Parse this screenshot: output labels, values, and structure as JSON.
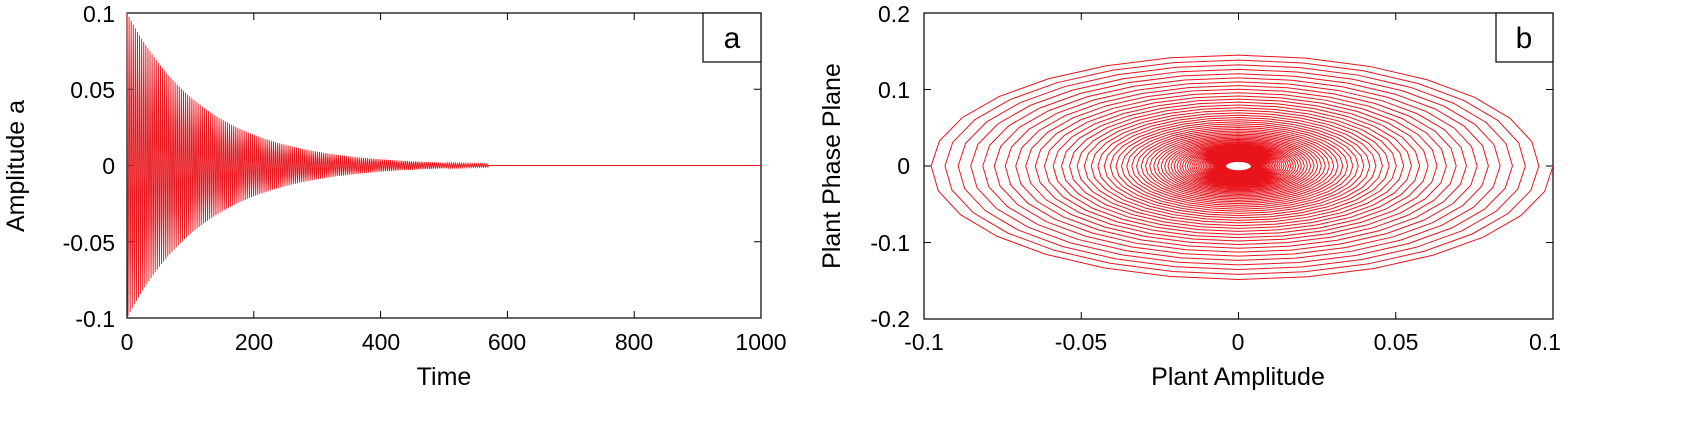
{
  "chart_data": [
    {
      "type": "line",
      "panel_label": "a",
      "title": "",
      "xlabel": "Time",
      "ylabel": "Amplitude a",
      "xlim": [
        0,
        1000
      ],
      "ylim": [
        -0.1,
        0.1
      ],
      "xticks": [
        0,
        200,
        400,
        600,
        800,
        1000
      ],
      "xtick_labels": [
        "0",
        "200",
        "400",
        "600",
        "800",
        "1000"
      ],
      "yticks": [
        -0.1,
        -0.05,
        0,
        0.05,
        0.1
      ],
      "ytick_labels": [
        "-0.1",
        "-0.05",
        "0",
        "0.05",
        "0.1"
      ],
      "grid": false,
      "line_color": "#e8141c",
      "series": [
        {
          "description_signal": "decaying oscillation",
          "initial_amplitude": 0.1,
          "decay_time_constant": 125,
          "oscillation_period": 3.3,
          "visible_until": 570,
          "settles_to": 0
        }
      ]
    },
    {
      "type": "line",
      "panel_label": "b",
      "title": "",
      "xlabel": "Plant Amplitude",
      "ylabel": "Plant Phase Plane",
      "xlim": [
        -0.1,
        0.1
      ],
      "ylim": [
        -0.2,
        0.2
      ],
      "xticks": [
        -0.1,
        -0.05,
        0,
        0.05,
        0.1
      ],
      "xtick_labels": [
        "-0.1",
        "-0.05",
        "0",
        "0.05",
        "0.1"
      ],
      "yticks": [
        -0.2,
        -0.1,
        0,
        0.1,
        0.2
      ],
      "ytick_labels": [
        "-0.2",
        "-0.1",
        "0",
        "0.1",
        "0.2"
      ],
      "grid": false,
      "line_color": "#e8141c",
      "series": [
        {
          "description_signal": "inward elliptical spiral",
          "start_x": 0.1,
          "max_x": 0.1,
          "max_y": 0.15,
          "turns": 70,
          "end_radius_fraction": 0.04,
          "center": [
            0,
            0
          ]
        }
      ]
    }
  ]
}
